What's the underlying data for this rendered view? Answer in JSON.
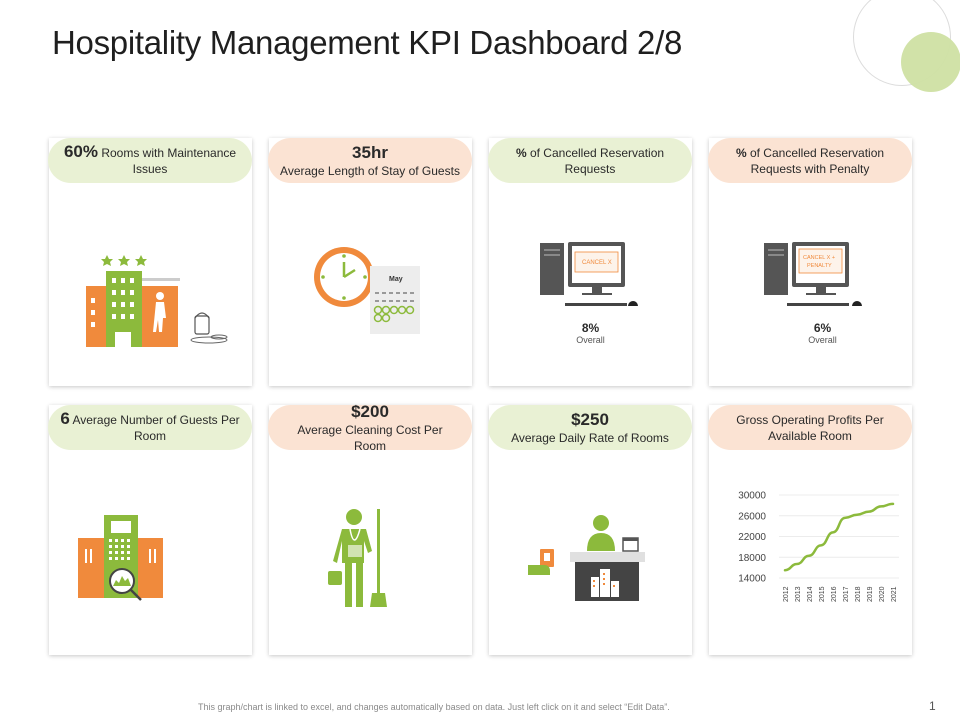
{
  "title": "Hospitality Management KPI Dashboard 2/8",
  "cards": [
    {
      "value": "60%",
      "label": "Rooms with Maintenance Issues"
    },
    {
      "value": "35hr",
      "label": "Average Length of Stay of Guests",
      "calendar_month": "May"
    },
    {
      "label_bold": "%",
      "label": "of Cancelled Reservation Requests",
      "screen_text": "CANCEL X",
      "stat_value": "8%",
      "stat_sub": "Overall"
    },
    {
      "label_bold": "%",
      "label": "of Cancelled Reservation Requests with Penalty",
      "screen_text_1": "CANCEL X +",
      "screen_text_2": "PENALTY",
      "stat_value": "6%",
      "stat_sub": "Overall"
    },
    {
      "value": "6",
      "label": "Average Number of Guests Per Room"
    },
    {
      "value": "$200",
      "label": "Average Cleaning Cost Per Room"
    },
    {
      "value": "$250",
      "label": "Average Daily Rate of Rooms"
    },
    {
      "label": "Gross Operating Profits Per Available Room"
    }
  ],
  "chart_data": {
    "type": "line",
    "x": [
      "2012",
      "2013",
      "2014",
      "2015",
      "2016",
      "2017",
      "2018",
      "2019",
      "2020",
      "2021"
    ],
    "series": [
      {
        "values": [
          15500,
          16700,
          18300,
          20300,
          22800,
          25600,
          26200,
          26800,
          27800,
          28300
        ]
      }
    ],
    "ylim": [
      14000,
      30000
    ],
    "yticks": [
      30000,
      26000,
      22000,
      18000,
      14000
    ],
    "grid": true,
    "color": "#8cba3c"
  },
  "colors": {
    "green": "#8cba3c",
    "orange": "#f08a3c",
    "pill_green": "#e9f1d4",
    "pill_peach": "#fbe3d3"
  },
  "footer": "This graph/chart is linked to excel, and changes automatically based on data. Just left click on it and select “Edit Data”.",
  "page_number": "1"
}
